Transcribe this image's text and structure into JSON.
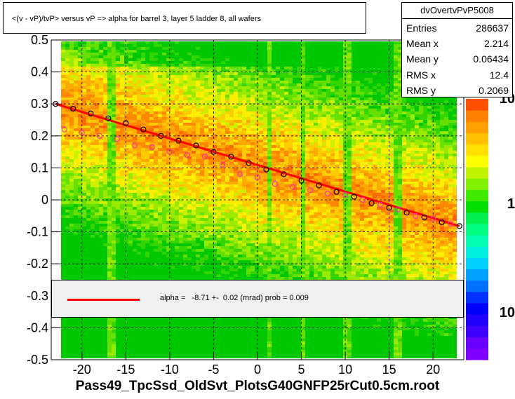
{
  "title": "<(v - vP)/tvP> versus   vP => alpha for barrel 3, layer 5 ladder 8, all wafers",
  "stats": {
    "name": "dvOvertvPvP5008",
    "rows": [
      {
        "label": "Entries",
        "value": "286637"
      },
      {
        "label": "Mean x",
        "value": "2.214"
      },
      {
        "label": "Mean y",
        "value": "0.06434"
      },
      {
        "label": "RMS x",
        "value": "12.4"
      },
      {
        "label": "RMS y",
        "value": "0.2069"
      }
    ]
  },
  "legend": {
    "text": "alpha =   -8.71 +-  0.02 (mrad) prob = 0.009",
    "line_color": "#ff0000"
  },
  "colors": {
    "fit_line": "#ff0000",
    "profile_black": "#000000",
    "profile_magenta": "#ff33aa"
  },
  "chart_data": {
    "type": "heatmap",
    "xlabel": "Pass49_TpcSsd_OldSvt_PlotsG40GNFP25rCut0.5cm.root",
    "ylabel": "",
    "xlim": [
      -23.5,
      23.5
    ],
    "ylim": [
      -0.5,
      0.5
    ],
    "x_ticks": [
      -20,
      -15,
      -10,
      -5,
      0,
      5,
      10,
      15,
      20
    ],
    "y_ticks": [
      -0.5,
      -0.4,
      -0.3,
      -0.2,
      -0.1,
      0,
      0.1,
      0.2,
      0.3,
      0.4,
      0.5
    ],
    "y_tick_labels": [
      "-0.5",
      "-0.4",
      "-0.3",
      "-0.2",
      "-0.1",
      "0",
      "0.1",
      "0.2",
      "0.3",
      "0.4",
      "0.5"
    ],
    "colorbar_labels": [
      "10",
      "1",
      "10"
    ],
    "grid": true,
    "fit_line": {
      "x": [
        -23.0,
        23.0
      ],
      "y": [
        0.3,
        -0.082
      ]
    },
    "series": [
      {
        "values_x": [
          -23.0,
          -21.0,
          -19.0,
          -17.0,
          -15.0,
          -13.0,
          -11.0,
          -9.0,
          -7.0,
          -5.0,
          -3.0,
          -1.0,
          1.0,
          3.0,
          5.0,
          7.0,
          9.0,
          11.0,
          13.0,
          15.0,
          17.0,
          19.0,
          21.0,
          23.0
        ],
        "values_y": [
          0.3,
          0.285,
          0.27,
          0.255,
          0.24,
          0.22,
          0.2,
          0.185,
          0.17,
          0.15,
          0.135,
          0.115,
          0.095,
          0.08,
          0.06,
          0.045,
          0.025,
          0.01,
          -0.01,
          -0.025,
          -0.04,
          -0.055,
          -0.07,
          -0.082
        ]
      },
      {
        "values_x": [
          -22.0,
          -20.0,
          -18.0,
          -16.0,
          -14.0,
          -12.0,
          -10.0,
          -8.0,
          -6.0,
          -4.0,
          -2.0,
          0.0,
          2.0,
          4.0,
          6.0,
          8.0,
          10.0,
          12.0,
          14.0,
          16.0,
          18.0,
          20.0,
          22.0
        ],
        "values_y": [
          0.22,
          0.21,
          0.2,
          0.19,
          0.17,
          0.165,
          0.15,
          0.14,
          0.135,
          0.11,
          0.08,
          0.07,
          0.05,
          0.04,
          0.03,
          0.02,
          0.015,
          0.0,
          -0.015,
          -0.03,
          -0.05,
          -0.06,
          -0.075
        ]
      }
    ]
  }
}
